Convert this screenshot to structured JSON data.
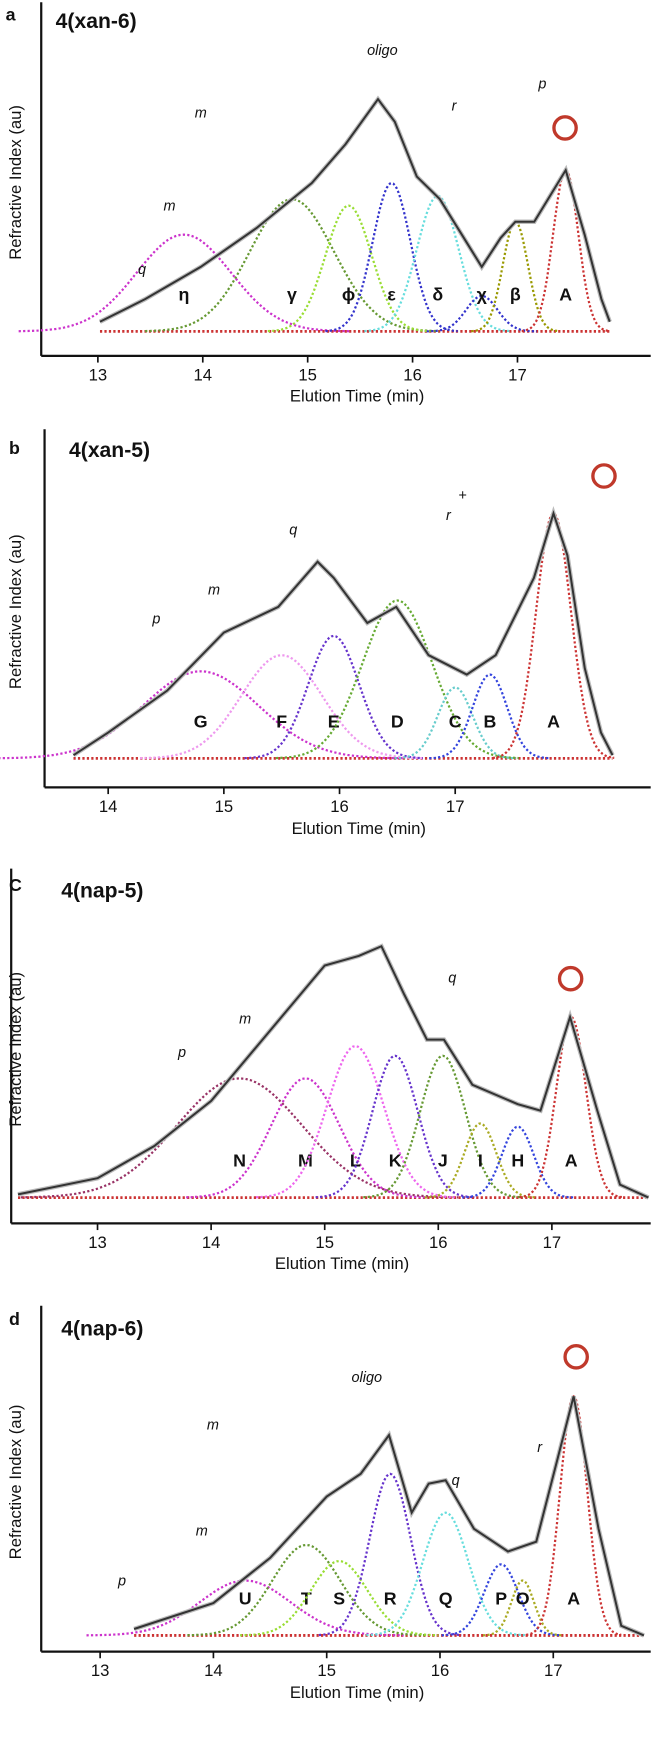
{
  "chart_data": [
    {
      "type": "line",
      "panel": "a",
      "title": "4(xan-6)",
      "xlabel": "Elution Time (min)",
      "ylabel": "Refractive Index (au)",
      "xlim": [
        12.46,
        18.27
      ],
      "ylim": [
        -0.076,
        1
      ],
      "xticks": [
        13,
        14,
        15,
        16,
        17
      ],
      "annotations": [
        "m",
        "m",
        "q",
        "oligo",
        "r",
        "p"
      ],
      "trace": {
        "color": "#333333",
        "x": [
          13.02,
          13.45,
          13.98,
          14.51,
          15.04,
          15.36,
          15.67,
          15.83,
          16.04,
          16.26,
          16.47,
          16.66,
          16.84,
          16.98,
          17.16,
          17.46,
          17.64,
          17.8,
          17.88
        ],
        "values": [
          0.03,
          0.1,
          0.2,
          0.32,
          0.46,
          0.58,
          0.72,
          0.65,
          0.48,
          0.41,
          0.3,
          0.2,
          0.29,
          0.34,
          0.34,
          0.5,
          0.3,
          0.1,
          0.03
        ]
      },
      "peaks": [
        {
          "name": "η",
          "color": "#cc33cc",
          "center": 13.82,
          "height": 0.3,
          "width": 0.45
        },
        {
          "name": "γ",
          "color": "#669933",
          "center": 14.85,
          "height": 0.41,
          "width": 0.4
        },
        {
          "name": "ϕ",
          "color": "#99dd33",
          "center": 15.39,
          "height": 0.39,
          "width": 0.22
        },
        {
          "name": "ε",
          "color": "#3333cc",
          "center": 15.8,
          "height": 0.46,
          "width": 0.18
        },
        {
          "name": "δ",
          "color": "#66dddd",
          "center": 16.24,
          "height": 0.42,
          "width": 0.2
        },
        {
          "name": "χ",
          "color": "#3333cc",
          "center": 16.66,
          "height": 0.11,
          "width": 0.15
        },
        {
          "name": "β",
          "color": "#999900",
          "center": 16.98,
          "height": 0.34,
          "width": 0.12
        },
        {
          "name": "A",
          "color": "#cc3333",
          "center": 17.46,
          "height": 0.5,
          "width": 0.12
        }
      ]
    },
    {
      "type": "line",
      "panel": "b",
      "title": "4(xan-5)",
      "xlabel": "Elution Time (min)",
      "ylabel": "Refractive Index (au)",
      "xlim": [
        13.45,
        18.69
      ],
      "ylim": [
        -0.09,
        1
      ],
      "xticks": [
        14,
        15,
        16,
        17
      ],
      "annotations": [
        "q",
        "m",
        "p",
        "r",
        "+"
      ],
      "trace": {
        "color": "#333333",
        "x": [
          13.7,
          14,
          14.51,
          15,
          15.47,
          15.81,
          15.95,
          16.24,
          16.49,
          16.77,
          17.1,
          17.35,
          17.68,
          17.85,
          17.97,
          18.12,
          18.26,
          18.36
        ],
        "values": [
          0.01,
          0.08,
          0.21,
          0.39,
          0.47,
          0.61,
          0.56,
          0.42,
          0.47,
          0.32,
          0.26,
          0.32,
          0.56,
          0.76,
          0.63,
          0.28,
          0.08,
          0.01
        ]
      },
      "peaks": [
        {
          "name": "G",
          "color": "#cc33cc",
          "center": 14.8,
          "height": 0.27,
          "width": 0.5
        },
        {
          "name": "F",
          "color": "#ee99ee",
          "center": 15.5,
          "height": 0.32,
          "width": 0.35
        },
        {
          "name": "E",
          "color": "#6633cc",
          "center": 15.95,
          "height": 0.38,
          "width": 0.22
        },
        {
          "name": "D",
          "color": "#66aa33",
          "center": 16.5,
          "height": 0.49,
          "width": 0.3
        },
        {
          "name": "C",
          "color": "#66cccc",
          "center": 17.0,
          "height": 0.22,
          "width": 0.15
        },
        {
          "name": "B",
          "color": "#3344dd",
          "center": 17.3,
          "height": 0.26,
          "width": 0.15
        },
        {
          "name": "A",
          "color": "#cc3333",
          "center": 17.85,
          "height": 0.76,
          "width": 0.15
        }
      ]
    },
    {
      "type": "line",
      "panel": "C",
      "title": "4(nap-5)",
      "xlabel": "Elution Time (min)",
      "ylabel": "Refractive Index (au)",
      "xlim": [
        12.24,
        17.87
      ],
      "ylim": [
        -0.08,
        1
      ],
      "xticks": [
        13,
        14,
        15,
        16,
        17
      ],
      "annotations": [
        "m",
        "p",
        "q"
      ],
      "trace": {
        "color": "#333333",
        "x": [
          12.3,
          13,
          13.5,
          14,
          14.5,
          15,
          15.3,
          15.5,
          15.7,
          15.9,
          16.05,
          16.3,
          16.7,
          16.9,
          17.16,
          17.4,
          17.6,
          17.85
        ],
        "values": [
          0.01,
          0.06,
          0.16,
          0.3,
          0.51,
          0.72,
          0.75,
          0.78,
          0.63,
          0.49,
          0.49,
          0.35,
          0.29,
          0.27,
          0.56,
          0.27,
          0.04,
          0
        ]
      },
      "peaks": [
        {
          "name": "N",
          "color": "#993366",
          "center": 14.25,
          "height": 0.37,
          "width": 0.55
        },
        {
          "name": "M",
          "color": "#cc33cc",
          "center": 14.83,
          "height": 0.37,
          "width": 0.3
        },
        {
          "name": "L",
          "color": "#ee66ee",
          "center": 15.27,
          "height": 0.47,
          "width": 0.25
        },
        {
          "name": "K",
          "color": "#6633cc",
          "center": 15.62,
          "height": 0.44,
          "width": 0.2
        },
        {
          "name": "J",
          "color": "#669933",
          "center": 16.04,
          "height": 0.44,
          "width": 0.2
        },
        {
          "name": "I",
          "color": "#aaaa22",
          "center": 16.37,
          "height": 0.23,
          "width": 0.14
        },
        {
          "name": "H",
          "color": "#3344dd",
          "center": 16.7,
          "height": 0.22,
          "width": 0.14
        },
        {
          "name": "A",
          "color": "#cc3333",
          "center": 17.17,
          "height": 0.56,
          "width": 0.13
        }
      ]
    },
    {
      "type": "line",
      "panel": "d",
      "title": "4(nap-6)",
      "xlabel": "Elution Time (min)",
      "ylabel": "Refractive Index (au)",
      "xlim": [
        12.48,
        17.86
      ],
      "ylim": [
        -0.05,
        1
      ],
      "xticks": [
        13,
        14,
        15,
        16,
        17
      ],
      "annotations": [
        "oligo",
        "m",
        "m",
        "p",
        "q",
        "r"
      ],
      "trace": {
        "color": "#333333",
        "x": [
          13.3,
          14,
          14.5,
          15,
          15.3,
          15.55,
          15.75,
          15.9,
          16.05,
          16.3,
          16.6,
          16.85,
          17.18,
          17.4,
          17.6,
          17.8
        ],
        "values": [
          0.02,
          0.1,
          0.24,
          0.43,
          0.5,
          0.62,
          0.38,
          0.47,
          0.48,
          0.33,
          0.26,
          0.29,
          0.74,
          0.33,
          0.03,
          0
        ]
      },
      "peaks": [
        {
          "name": "U",
          "color": "#cc33cc",
          "center": 14.28,
          "height": 0.17,
          "width": 0.4
        },
        {
          "name": "T",
          "color": "#669933",
          "center": 14.82,
          "height": 0.28,
          "width": 0.3
        },
        {
          "name": "S",
          "color": "#99dd33",
          "center": 15.11,
          "height": 0.23,
          "width": 0.25
        },
        {
          "name": "R",
          "color": "#6633cc",
          "center": 15.56,
          "height": 0.5,
          "width": 0.18
        },
        {
          "name": "Q",
          "color": "#66dddd",
          "center": 16.05,
          "height": 0.38,
          "width": 0.2
        },
        {
          "name": "P",
          "color": "#3344dd",
          "center": 16.54,
          "height": 0.22,
          "width": 0.15
        },
        {
          "name": "O",
          "color": "#aaaa22",
          "center": 16.73,
          "height": 0.17,
          "width": 0.1
        },
        {
          "name": "A",
          "color": "#cc3333",
          "center": 17.18,
          "height": 0.74,
          "width": 0.12
        }
      ]
    }
  ]
}
